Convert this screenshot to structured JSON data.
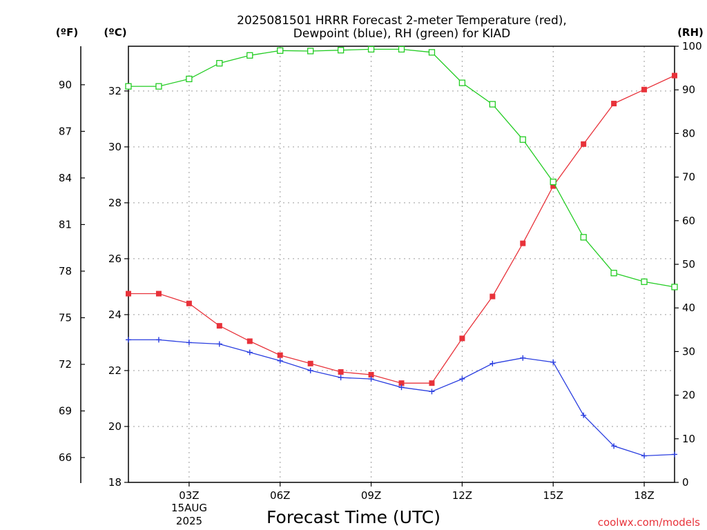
{
  "chart_data": {
    "type": "line",
    "title_line1": "2025081501 HRRR Forecast 2-meter Temperature (red),",
    "title_line2": "Dewpoint (blue), RH (green) for KIAD",
    "xlabel": "Forecast Time (UTC)",
    "unit_left_f": "(ºF)",
    "unit_left_c": "(ºC)",
    "unit_right": "(RH)",
    "credit": "coolwx.com/models",
    "date_label_line1": "15AUG",
    "date_label_line2": "2025",
    "xlim": [
      1,
      19
    ],
    "x_ticks": [
      {
        "hour": 3,
        "label": "03Z"
      },
      {
        "hour": 6,
        "label": "06Z"
      },
      {
        "hour": 9,
        "label": "09Z"
      },
      {
        "hour": 12,
        "label": "12Z"
      },
      {
        "hour": 15,
        "label": "15Z"
      },
      {
        "hour": 18,
        "label": "18Z"
      }
    ],
    "y_celsius": {
      "lim": [
        18,
        33.6
      ],
      "ticks": [
        18,
        20,
        22,
        24,
        26,
        28,
        30,
        32
      ]
    },
    "y_fahrenheit": {
      "ticks": [
        66,
        69,
        72,
        75,
        78,
        81,
        84,
        87,
        90
      ]
    },
    "y_rh": {
      "lim": [
        0,
        100
      ],
      "ticks": [
        0,
        10,
        20,
        30,
        40,
        50,
        60,
        70,
        80,
        90,
        100
      ]
    },
    "grid": true,
    "series": [
      {
        "name": "Temperature (red)",
        "axis": "celsius",
        "color": "#e8323a",
        "marker": "filled-square",
        "x": [
          1,
          2,
          3,
          4,
          5,
          6,
          7,
          8,
          9,
          10,
          11,
          12,
          13,
          14,
          15,
          16,
          17,
          18,
          19
        ],
        "values": [
          24.75,
          24.75,
          24.4,
          23.6,
          23.05,
          22.55,
          22.25,
          21.95,
          21.85,
          21.55,
          21.55,
          23.15,
          24.65,
          26.55,
          28.6,
          30.1,
          31.55,
          32.05,
          32.55
        ]
      },
      {
        "name": "Dewpoint (blue)",
        "axis": "celsius",
        "color": "#2a3ee0",
        "marker": "plus",
        "x": [
          1,
          2,
          3,
          4,
          5,
          6,
          7,
          8,
          9,
          10,
          11,
          12,
          13,
          14,
          15,
          16,
          17,
          18,
          19
        ],
        "values": [
          23.1,
          23.1,
          23.0,
          22.95,
          22.65,
          22.35,
          22.0,
          21.75,
          21.7,
          21.4,
          21.25,
          21.7,
          22.25,
          22.45,
          22.3,
          20.4,
          19.3,
          18.95,
          19.0
        ]
      },
      {
        "name": "RH (green)",
        "axis": "rh",
        "color": "#22cc22",
        "marker": "open-square",
        "x": [
          1,
          2,
          3,
          4,
          5,
          6,
          7,
          8,
          9,
          10,
          11,
          12,
          13,
          14,
          15,
          16,
          17,
          18,
          19
        ],
        "values": [
          90.8,
          90.8,
          92.5,
          96.1,
          97.9,
          99.0,
          98.9,
          99.1,
          99.3,
          99.3,
          98.6,
          91.6,
          86.7,
          78.6,
          68.9,
          56.2,
          48.0,
          46.0,
          44.8
        ]
      }
    ]
  }
}
